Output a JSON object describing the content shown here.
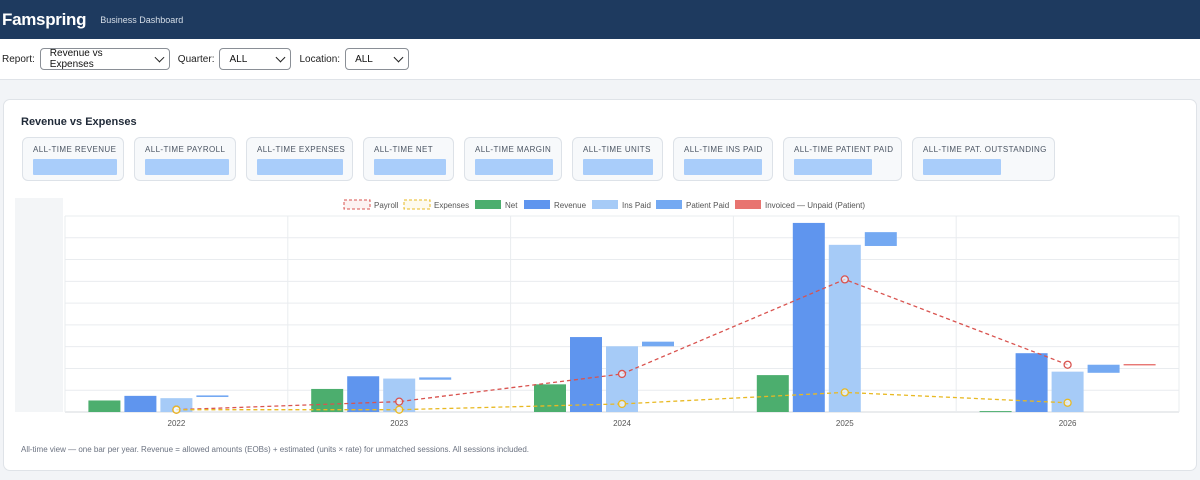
{
  "app": {
    "brand": "Famspring",
    "subtitle": "Business Dashboard"
  },
  "filters": {
    "report_label": "Report:",
    "report_value": "Revenue vs Expenses",
    "quarter_label": "Quarter:",
    "quarter_value": "ALL",
    "location_label": "Location:",
    "location_value": "ALL"
  },
  "card": {
    "title": "Revenue vs Expenses",
    "kpis": [
      {
        "label": "ALL-TIME REVENUE"
      },
      {
        "label": "ALL-TIME PAYROLL"
      },
      {
        "label": "ALL-TIME EXPENSES"
      },
      {
        "label": "ALL-TIME NET"
      },
      {
        "label": "ALL-TIME MARGIN"
      },
      {
        "label": "ALL-TIME UNITS"
      },
      {
        "label": "ALL-TIME INS PAID"
      },
      {
        "label": "ALL-TIME PATIENT PAID"
      },
      {
        "label": "ALL-TIME PAT. OUTSTANDING"
      }
    ],
    "footnote": "All-time view — one bar per year. Revenue = allowed amounts (EOBs) + estimated (units × rate) for unmatched sessions. All sessions included."
  },
  "colors": {
    "payroll": "#d9534f",
    "expenses": "#e8b923",
    "net": "#4cae6e",
    "revenue": "#5f95ee",
    "ins_paid": "#a6cbf7",
    "patient_paid": "#74a9f2",
    "unpaid": "#e87470"
  },
  "chart_data": {
    "type": "bar",
    "categories": [
      "2022",
      "2023",
      "2024",
      "2025",
      "2026"
    ],
    "ylim": [
      0,
      85
    ],
    "grid": true,
    "legend_position": "top-center",
    "series": [
      {
        "name": "Net",
        "kind": "bar",
        "color": "#4cae6e",
        "values": [
          5,
          10,
          12,
          16,
          0.4
        ]
      },
      {
        "name": "Revenue",
        "kind": "bar",
        "color": "#5f95ee",
        "values": [
          7,
          15.5,
          32.5,
          82,
          25.5
        ]
      },
      {
        "name": "Ins Paid",
        "kind": "bar",
        "color": "#a6cbf7",
        "values": [
          6,
          14.5,
          28.5,
          72.5,
          17.5
        ]
      },
      {
        "name": "Patient Paid",
        "kind": "bar-float",
        "color": "#74a9f2",
        "values": [
          [
            6.5,
            7.2
          ],
          [
            14,
            15
          ],
          [
            28.5,
            30.5
          ],
          [
            72,
            78
          ],
          [
            17,
            20.5
          ]
        ]
      },
      {
        "name": "Invoiced — Unpaid (Patient)",
        "kind": "bar-float",
        "color": "#e87470",
        "values": [
          null,
          null,
          null,
          null,
          [
            20.2,
            20.8
          ]
        ]
      },
      {
        "name": "Payroll",
        "kind": "line",
        "color": "#d9534f",
        "values": [
          1,
          4.5,
          16.5,
          57.5,
          20.5
        ]
      },
      {
        "name": "Expenses",
        "kind": "line",
        "color": "#e8b923",
        "values": [
          1,
          1,
          3.5,
          8.5,
          4
        ]
      }
    ]
  }
}
